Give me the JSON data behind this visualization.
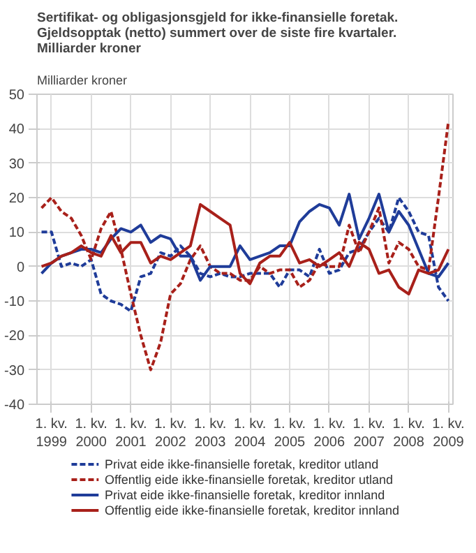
{
  "chart_data": {
    "type": "line",
    "title": "Sertifikat- og obligasjonsgjeld for ikke-finansielle foretak.\nGjeldsopptak (netto) summert over de siste fire kvartaler.\nMilliarder kroner",
    "ylabel": "Milliarder kroner",
    "categories": [
      null,
      "1. kv.\n1999",
      null,
      null,
      null,
      "1. kv.\n2000",
      null,
      null,
      null,
      "1. kv.\n2001",
      null,
      null,
      null,
      "1. kv.\n2002",
      null,
      null,
      null,
      "1. kv.\n2003",
      null,
      null,
      null,
      "1. kv.\n2004",
      null,
      null,
      null,
      "1. kv.\n2005",
      null,
      null,
      null,
      "1. kv.\n2006",
      null,
      null,
      null,
      "1. kv.\n2007",
      null,
      null,
      null,
      "1. kv.\n2008",
      null,
      null,
      null,
      "1. kv.\n2009"
    ],
    "series": [
      {
        "name": "Privat eide ikke-finansielle foretak, kreditor utland",
        "color": "#1f3c99",
        "line_style": "dashed",
        "values": [
          10,
          10,
          0,
          1,
          0,
          2,
          -8,
          -10,
          -11,
          -13,
          -3,
          -2,
          4,
          3,
          6,
          3,
          -2,
          -3,
          -2,
          -3,
          -3,
          -2,
          -2,
          -2,
          -6,
          -1,
          -1,
          -3,
          5,
          -2,
          -1,
          4,
          5,
          10,
          14,
          10,
          20,
          16,
          10,
          9,
          -6,
          -10
        ]
      },
      {
        "name": "Offentlig eide ikke-finansielle foretak, kreditor utland",
        "color": "#a8201a",
        "line_style": "dashed",
        "values": [
          17,
          20,
          16,
          14,
          9,
          2,
          11,
          16,
          5,
          -8,
          -20,
          -30,
          -22,
          -8,
          -5,
          2,
          6,
          0,
          -2,
          -2,
          -4,
          -4,
          0,
          -2,
          -1,
          -1,
          -6,
          -4,
          1,
          0,
          0,
          12,
          4,
          10,
          17,
          1,
          7,
          5,
          0,
          -1,
          20,
          42
        ]
      },
      {
        "name": "Privat eide ikke-finansielle foretak, kreditor innland",
        "color": "#1f3c99",
        "line_style": "solid",
        "values": [
          -2,
          1,
          3,
          4,
          5,
          5,
          4,
          8,
          11,
          10,
          12,
          7,
          9,
          8,
          3,
          3,
          -4,
          0,
          0,
          0,
          6,
          2,
          3,
          4,
          6,
          6,
          13,
          16,
          18,
          17,
          12,
          21,
          8,
          14,
          21,
          10,
          16,
          12,
          5,
          -2,
          -3,
          1
        ]
      },
      {
        "name": "Offentlig eide ikke-finansielle foretak, kreditor innland",
        "color": "#a8201a",
        "line_style": "solid",
        "values": [
          0,
          1,
          3,
          4,
          6,
          4,
          3,
          9,
          4,
          7,
          7,
          1,
          3,
          2,
          4,
          6,
          18,
          16,
          14,
          12,
          -2,
          -5,
          1,
          3,
          3,
          7,
          1,
          2,
          0,
          2,
          4,
          0,
          7,
          5,
          -2,
          -1,
          -6,
          -8,
          -1,
          -2,
          -1,
          5
        ]
      }
    ],
    "ylim": [
      -40,
      50
    ],
    "yticks": [
      -40,
      -30,
      -20,
      -10,
      0,
      10,
      20,
      30,
      40,
      50
    ],
    "grid": true,
    "legend": "bottom"
  }
}
